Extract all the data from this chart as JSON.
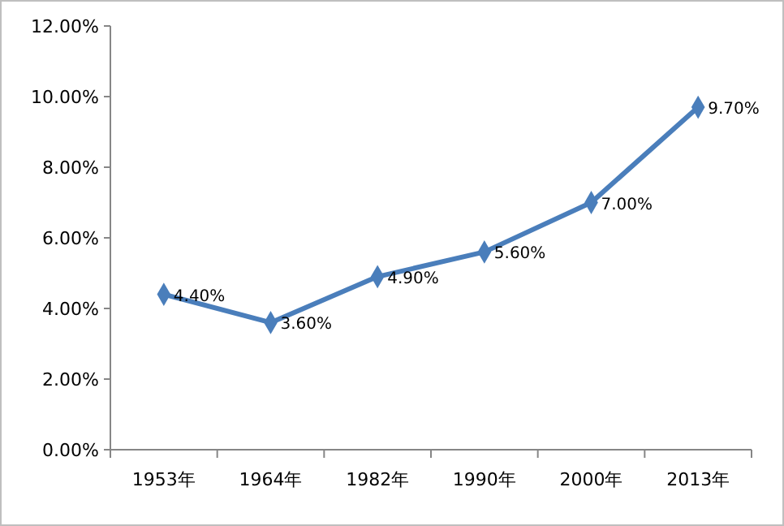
{
  "chart_data": {
    "type": "line",
    "categories": [
      "1953年",
      "1964年",
      "1982年",
      "1990年",
      "2000年",
      "2013年"
    ],
    "series": [
      {
        "color": "#4a7ebb",
        "values": [
          4.4,
          3.6,
          4.9,
          5.6,
          7.0,
          9.7
        ],
        "value_labels": [
          "4.40%",
          "3.60%",
          "4.90%",
          "5.60%",
          "7.00%",
          "9.70%"
        ]
      }
    ],
    "ylim": [
      0,
      12
    ],
    "yticks": [
      {
        "value": 0,
        "label": "0.00%"
      },
      {
        "value": 2,
        "label": "2.00%"
      },
      {
        "value": 4,
        "label": "4.00%"
      },
      {
        "value": 6,
        "label": "6.00%"
      },
      {
        "value": 8,
        "label": "8.00%"
      },
      {
        "value": 10,
        "label": "10.00%"
      },
      {
        "value": 12,
        "label": "12.00%"
      }
    ],
    "grid": false,
    "marker": "diamond",
    "line_style": "solid"
  }
}
